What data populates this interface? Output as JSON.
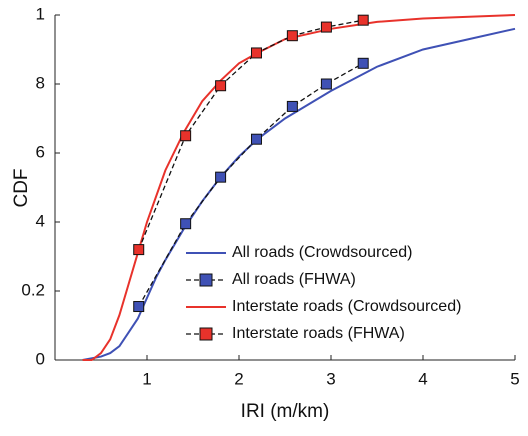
{
  "chart_data": {
    "type": "line",
    "xlabel": "IRI (m/km)",
    "ylabel": "CDF",
    "xlim": [
      0,
      5
    ],
    "xticks": [
      1,
      2,
      3,
      4,
      5
    ],
    "ylim": [
      0,
      1
    ],
    "yticks": [
      0,
      0.2,
      {
        "value": 0.4,
        "label": "4"
      },
      {
        "value": 0.6,
        "label": "6"
      },
      {
        "value": 0.8,
        "label": "8"
      },
      1
    ],
    "legend": "lower right",
    "series": [
      {
        "name": "All roads (Crowdsourced)",
        "color": "#3f51b5",
        "style": "solid",
        "x": [
          0.3,
          0.5,
          0.6,
          0.7,
          0.8,
          0.9,
          1.0,
          1.1,
          1.2,
          1.4,
          1.6,
          1.8,
          2.0,
          2.2,
          2.5,
          3.0,
          3.5,
          4.0,
          4.5,
          5.0
        ],
        "values": [
          0,
          0.01,
          0.02,
          0.04,
          0.08,
          0.12,
          0.18,
          0.24,
          0.29,
          0.38,
          0.46,
          0.53,
          0.59,
          0.64,
          0.7,
          0.78,
          0.85,
          0.9,
          0.93,
          0.96
        ]
      },
      {
        "name": "All roads (FHWA)",
        "color": "#3f51b5",
        "style": "dashed-marker",
        "x": [
          0.91,
          1.42,
          1.8,
          2.19,
          2.58,
          2.95,
          3.35
        ],
        "values": [
          0.155,
          0.395,
          0.53,
          0.64,
          0.735,
          0.8,
          0.86
        ]
      },
      {
        "name": "Interstate roads (Crowdsourced)",
        "color": "#e8322b",
        "style": "solid",
        "x": [
          0.3,
          0.4,
          0.5,
          0.6,
          0.7,
          0.8,
          0.9,
          1.0,
          1.2,
          1.4,
          1.6,
          1.8,
          2.0,
          2.2,
          2.5,
          3.0,
          3.5,
          4.0,
          5.0
        ],
        "values": [
          0,
          0.0,
          0.02,
          0.06,
          0.13,
          0.22,
          0.31,
          0.4,
          0.55,
          0.66,
          0.75,
          0.81,
          0.86,
          0.89,
          0.93,
          0.96,
          0.98,
          0.99,
          1.0
        ]
      },
      {
        "name": "Interstate roads (FHWA)",
        "color": "#e8322b",
        "style": "dashed-marker",
        "x": [
          0.91,
          1.42,
          1.8,
          2.19,
          2.58,
          2.95,
          3.35
        ],
        "values": [
          0.32,
          0.65,
          0.795,
          0.89,
          0.94,
          0.965,
          0.985
        ]
      }
    ]
  }
}
